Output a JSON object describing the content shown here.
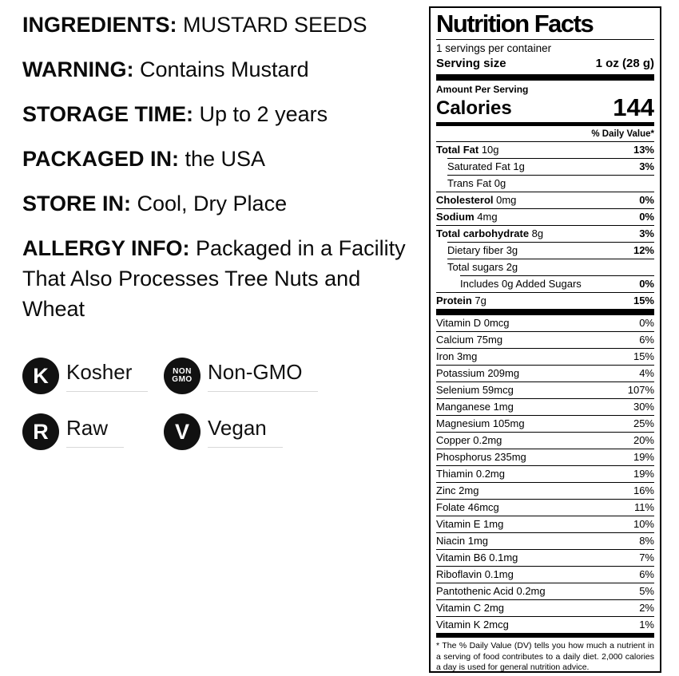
{
  "colors": {
    "text": "#000000",
    "badge_fill": "#111111",
    "badge_label_underline": "#d9d9d9",
    "label_border": "#000000"
  },
  "info": {
    "items": [
      {
        "label": "INGREDIENTS:",
        "lines": [
          "MUSTARD SEEDS"
        ]
      },
      {
        "label": "WARNING:",
        "lines": [
          "Contains Mustard"
        ]
      },
      {
        "label": "STORAGE TIME:",
        "lines": [
          "Up to 2 years"
        ]
      },
      {
        "label": "PACKAGED IN:",
        "lines": [
          "the USA"
        ]
      },
      {
        "label": "STORE IN:",
        "lines": [
          "Cool, Dry Place"
        ]
      },
      {
        "label": "ALLERGY INFO:",
        "lines": [
          "Packaged in a Facility",
          "That Also Processes Tree Nuts and",
          "Wheat"
        ]
      }
    ]
  },
  "badges": [
    {
      "icon": "kosher-icon",
      "icon_lines": [
        "K"
      ],
      "label": "Kosher"
    },
    {
      "icon": "non-gmo-icon",
      "icon_lines": [
        "NON",
        "GMO"
      ],
      "label": "Non-GMO"
    },
    {
      "icon": "raw-icon",
      "icon_lines": [
        "R"
      ],
      "label": "Raw"
    },
    {
      "icon": "vegan-icon",
      "icon_lines": [
        "V"
      ],
      "label": "Vegan"
    }
  ],
  "nutrition": {
    "title": "Nutrition Facts",
    "servings_per_container": "1 servings per container",
    "serving_size_label": "Serving size",
    "serving_size_value": "1 oz (28 g)",
    "amount_per_serving": "Amount Per Serving",
    "calories_label": "Calories",
    "calories_value": "144",
    "daily_value_header": "% Daily Value*",
    "main_rows": [
      {
        "name": "Total Fat",
        "amount": "10g",
        "dv": "13%",
        "bold": true,
        "indent": 0
      },
      {
        "name": "Saturated Fat",
        "amount": "1g",
        "dv": "3%",
        "bold": false,
        "indent": 1
      },
      {
        "name": "Trans Fat",
        "amount": "0g",
        "dv": "",
        "bold": false,
        "indent": 1
      },
      {
        "name": "Cholesterol",
        "amount": "0mg",
        "dv": "0%",
        "bold": true,
        "indent": 0
      },
      {
        "name": "Sodium",
        "amount": "4mg",
        "dv": "0%",
        "bold": true,
        "indent": 0
      },
      {
        "name": "Total carbohydrate",
        "amount": "8g",
        "dv": "3%",
        "bold": true,
        "indent": 0
      },
      {
        "name": "Dietary fiber",
        "amount": "3g",
        "dv": "12%",
        "bold": false,
        "indent": 1
      },
      {
        "name": "Total sugars",
        "amount": "2g",
        "dv": "",
        "bold": false,
        "indent": 1
      },
      {
        "name": "Includes 0g Added Sugars",
        "amount": "",
        "dv": "0%",
        "bold": false,
        "indent": 2
      },
      {
        "name": "Protein",
        "amount": "7g",
        "dv": "15%",
        "bold": true,
        "indent": 0
      }
    ],
    "micro_rows": [
      {
        "name": "Vitamin D",
        "amount": "0mcg",
        "dv": "0%"
      },
      {
        "name": "Calcium",
        "amount": "75mg",
        "dv": "6%"
      },
      {
        "name": "Iron",
        "amount": "3mg",
        "dv": "15%"
      },
      {
        "name": "Potassium",
        "amount": "209mg",
        "dv": "4%"
      },
      {
        "name": "Selenium",
        "amount": "59mcg",
        "dv": "107%"
      },
      {
        "name": "Manganese",
        "amount": "1mg",
        "dv": "30%"
      },
      {
        "name": "Magnesium",
        "amount": "105mg",
        "dv": "25%"
      },
      {
        "name": "Copper",
        "amount": "0.2mg",
        "dv": "20%"
      },
      {
        "name": "Phosphorus",
        "amount": "235mg",
        "dv": "19%"
      },
      {
        "name": "Thiamin",
        "amount": "0.2mg",
        "dv": "19%"
      },
      {
        "name": "Zinc",
        "amount": "2mg",
        "dv": "16%"
      },
      {
        "name": "Folate",
        "amount": "46mcg",
        "dv": "11%"
      },
      {
        "name": "Vitamin E",
        "amount": "1mg",
        "dv": "10%"
      },
      {
        "name": "Niacin",
        "amount": "1mg",
        "dv": "8%"
      },
      {
        "name": "Vitamin B6",
        "amount": "0.1mg",
        "dv": "7%"
      },
      {
        "name": "Riboflavin",
        "amount": "0.1mg",
        "dv": "6%"
      },
      {
        "name": "Pantothenic Acid",
        "amount": "0.2mg",
        "dv": "5%"
      },
      {
        "name": "Vitamin C",
        "amount": "2mg",
        "dv": "2%"
      },
      {
        "name": "Vitamin K",
        "amount": "2mcg",
        "dv": "1%"
      }
    ],
    "footnote": "* The % Daily Value (DV) tells you how much a nutrient in a serving of food contributes to a daily diet. 2,000 calories a day is used for general nutrition advice."
  }
}
